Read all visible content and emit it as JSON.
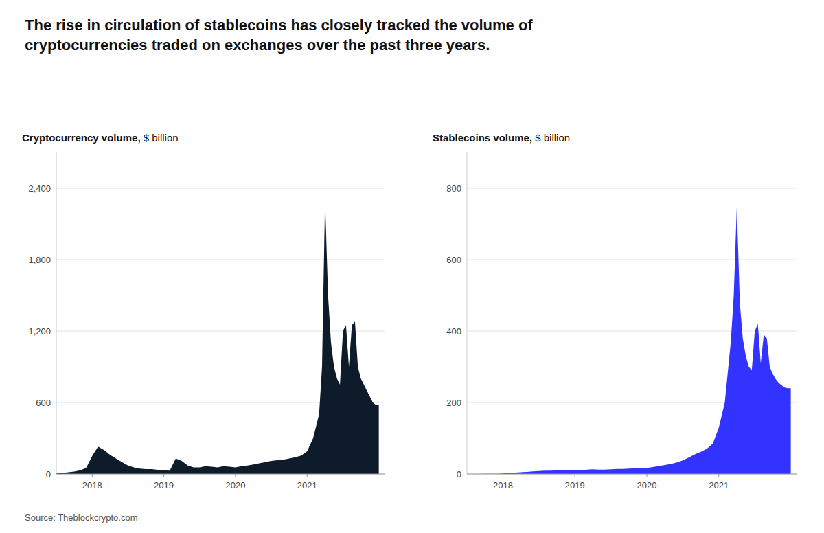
{
  "chart_data": [
    {
      "type": "area",
      "title": "The rise in circulation of stablecoins has closely tracked the volume of\ncryptocurrencies traded on exchanges over the past three years.",
      "annotations": [
        "Source: Theblockcrypto.com"
      ],
      "ylabel": "Cryptocurrency volume, $ billion",
      "color": "#0d1b2a",
      "grid": true,
      "xlim": [
        2017.5,
        2022.08
      ],
      "xticks": [
        2018,
        2019,
        2020,
        2021
      ],
      "ylim": [
        0,
        2700
      ],
      "yticks": [
        0,
        600,
        {
          "value": 1200,
          "label": "1,200"
        },
        {
          "value": 1800,
          "label": "1,800"
        },
        {
          "value": 2400,
          "label": "2,400"
        }
      ],
      "x": [
        2017.5,
        2017.583,
        2017.667,
        2017.75,
        2017.833,
        2017.917,
        2018.0,
        2018.083,
        2018.167,
        2018.25,
        2018.333,
        2018.417,
        2018.5,
        2018.583,
        2018.667,
        2018.75,
        2018.833,
        2018.917,
        2019.0,
        2019.083,
        2019.167,
        2019.25,
        2019.333,
        2019.417,
        2019.5,
        2019.583,
        2019.667,
        2019.75,
        2019.833,
        2019.917,
        2020.0,
        2020.083,
        2020.167,
        2020.25,
        2020.333,
        2020.417,
        2020.5,
        2020.583,
        2020.667,
        2020.75,
        2020.833,
        2020.917,
        2021.0,
        2021.083,
        2021.167,
        2021.208,
        2021.25,
        2021.292,
        2021.333,
        2021.375,
        2021.417,
        2021.458,
        2021.5,
        2021.542,
        2021.583,
        2021.625,
        2021.667,
        2021.708,
        2021.75,
        2021.792,
        2021.833,
        2021.875,
        2021.917,
        2021.958,
        2022.0
      ],
      "values": [
        5,
        8,
        15,
        20,
        30,
        50,
        150,
        230,
        200,
        160,
        130,
        100,
        70,
        55,
        45,
        40,
        40,
        35,
        30,
        28,
        130,
        110,
        70,
        55,
        55,
        65,
        60,
        55,
        65,
        60,
        55,
        65,
        70,
        80,
        90,
        100,
        110,
        115,
        120,
        130,
        140,
        155,
        190,
        300,
        500,
        900,
        2300,
        1500,
        1100,
        900,
        800,
        750,
        1200,
        1250,
        900,
        1250,
        1280,
        900,
        800,
        750,
        700,
        650,
        600,
        580,
        580
      ]
    },
    {
      "type": "area",
      "ylabel": "Stablecoins volume, $ billion",
      "color": "#3333ff",
      "grid": true,
      "xlim": [
        2017.5,
        2022.08
      ],
      "xticks": [
        2018,
        2019,
        2020,
        2021
      ],
      "ylim": [
        0,
        900
      ],
      "yticks": [
        0,
        200,
        400,
        600,
        800
      ],
      "x": [
        2017.5,
        2017.583,
        2017.667,
        2017.75,
        2017.833,
        2017.917,
        2018.0,
        2018.083,
        2018.167,
        2018.25,
        2018.333,
        2018.417,
        2018.5,
        2018.583,
        2018.667,
        2018.75,
        2018.833,
        2018.917,
        2019.0,
        2019.083,
        2019.167,
        2019.25,
        2019.333,
        2019.417,
        2019.5,
        2019.583,
        2019.667,
        2019.75,
        2019.833,
        2019.917,
        2020.0,
        2020.083,
        2020.167,
        2020.25,
        2020.333,
        2020.417,
        2020.5,
        2020.583,
        2020.667,
        2020.75,
        2020.833,
        2020.917,
        2021.0,
        2021.083,
        2021.167,
        2021.208,
        2021.25,
        2021.292,
        2021.333,
        2021.375,
        2021.417,
        2021.458,
        2021.5,
        2021.542,
        2021.583,
        2021.625,
        2021.667,
        2021.708,
        2021.75,
        2021.792,
        2021.833,
        2021.875,
        2021.917,
        2021.958,
        2022.0
      ],
      "values": [
        0,
        0.1,
        0.2,
        0.3,
        0.4,
        0.5,
        1.5,
        3,
        4,
        5,
        6,
        7,
        8,
        9,
        9,
        10,
        10,
        10,
        10,
        10,
        12,
        13,
        12,
        12,
        13,
        14,
        14,
        15,
        16,
        16,
        17,
        19,
        22,
        25,
        28,
        32,
        38,
        46,
        55,
        62,
        70,
        85,
        130,
        200,
        370,
        500,
        750,
        480,
        380,
        330,
        300,
        290,
        400,
        420,
        310,
        390,
        380,
        300,
        280,
        265,
        255,
        248,
        242,
        240,
        240
      ]
    }
  ]
}
